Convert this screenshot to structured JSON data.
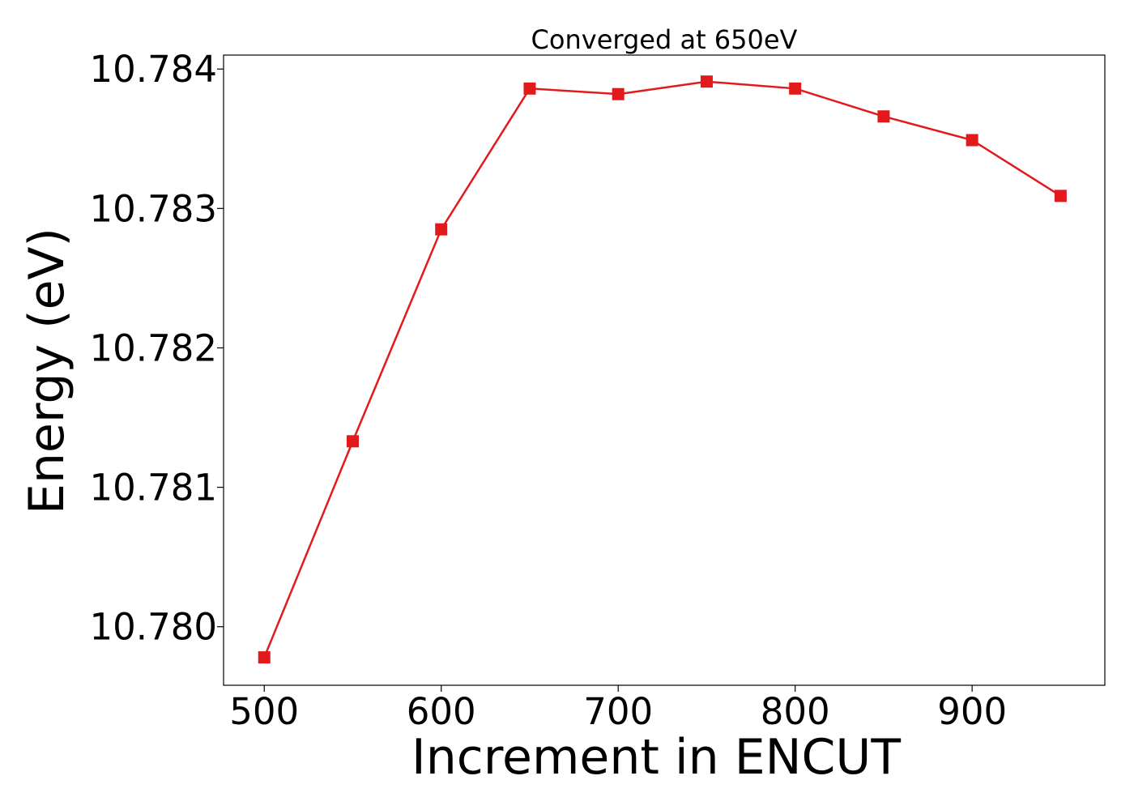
{
  "chart_data": {
    "type": "line",
    "title": "Converged at 650eV",
    "xlabel": "Increment in ENCUT",
    "ylabel": "Energy (eV)",
    "xlim": [
      477,
      975
    ],
    "ylim": [
      10.77958,
      10.7841
    ],
    "xticks": [
      500,
      600,
      700,
      800,
      900
    ],
    "xtick_labels": [
      "500",
      "600",
      "700",
      "800",
      "900"
    ],
    "yticks": [
      10.78,
      10.781,
      10.782,
      10.783,
      10.784
    ],
    "ytick_labels": [
      "10.780",
      "10.781",
      "10.782",
      "10.783",
      "10.784"
    ],
    "grid": false,
    "legend": "none",
    "series": [
      {
        "color": "#e31a1c",
        "marker": "square",
        "x": [
          500,
          550,
          600,
          650,
          700,
          750,
          800,
          850,
          900,
          950
        ],
        "y": [
          10.77978,
          10.78133,
          10.78285,
          10.78386,
          10.78382,
          10.78391,
          10.78386,
          10.78366,
          10.78349,
          10.78309
        ]
      }
    ]
  }
}
